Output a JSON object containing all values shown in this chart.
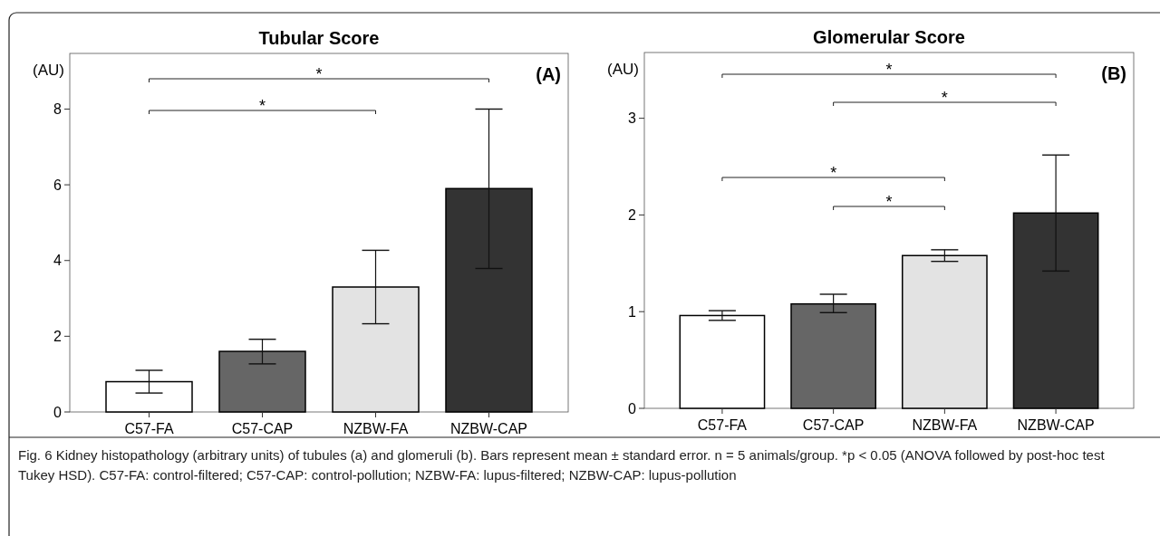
{
  "chart_data": [
    {
      "type": "bar",
      "title": "Tubular Score",
      "ylabel": "(AU)",
      "categories": [
        "C57-FA",
        "C57-CAP",
        "NZBW-FA",
        "NZBW-CAP"
      ],
      "values": [
        0.8,
        1.6,
        3.3,
        5.9
      ],
      "colors": [
        "#ffffff",
        "#666666",
        "#e3e3e3",
        "#333333"
      ],
      "errors": [
        [
          0.5,
          1.1
        ],
        [
          1.27,
          1.92
        ],
        [
          2.33,
          4.27
        ],
        [
          3.79,
          8.0
        ]
      ],
      "ylim": [
        0,
        9.47
      ],
      "yticks": [
        0,
        2,
        4,
        6,
        8
      ],
      "grid": false,
      "annotations": [
        "(A)",
        "*",
        "*"
      ]
    },
    {
      "type": "bar",
      "title": "Glomerular Score",
      "ylabel": "(AU)",
      "categories": [
        "C57-FA",
        "C57-CAP",
        "NZBW-FA",
        "NZBW-CAP"
      ],
      "values": [
        0.96,
        1.08,
        1.58,
        2.02
      ],
      "colors": [
        "#ffffff",
        "#666666",
        "#e3e3e3",
        "#333333"
      ],
      "errors": [
        [
          0.91,
          1.01
        ],
        [
          0.99,
          1.18
        ],
        [
          1.52,
          1.64
        ],
        [
          1.42,
          2.62
        ]
      ],
      "ylim": [
        0,
        3.68
      ],
      "yticks": [
        0,
        1,
        2,
        3
      ],
      "grid": false,
      "annotations": [
        "(B)",
        "*",
        "*",
        "*",
        "*",
        "Fig. 6 Kidney histopathology (arbitrary units) of tubules (a) and glomeruli (b). Bars represent mean ± standard error. n = 5 animals/group. *p < 0.05 (ANOVA followed by post-hoc test Tukey HSD). C57-FA: control-filtered; C57-CAP: control-pollution; NZBW-FA: lupus-filtered; NZBW-CAP: lupus-pollution"
      ]
    }
  ]
}
